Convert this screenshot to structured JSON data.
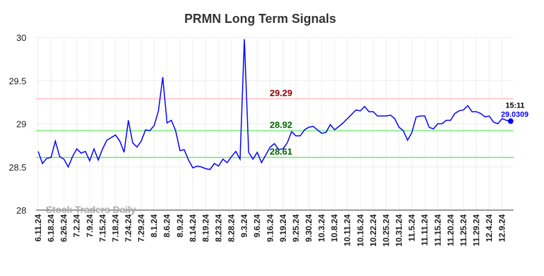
{
  "chart_data": {
    "type": "line",
    "title": "PRMN Long Term Signals",
    "categories": [
      "6.11.24",
      null,
      null,
      "6.18.24",
      null,
      null,
      "6.26.24",
      null,
      null,
      "7.2.24",
      null,
      null,
      "7.9.24",
      null,
      null,
      "7.15.24",
      null,
      null,
      "7.18.24",
      null,
      null,
      "7.24.24",
      null,
      null,
      "7.29.24",
      null,
      null,
      "8.1.24",
      null,
      null,
      "8.6.24",
      null,
      null,
      "8.9.24",
      null,
      null,
      "8.14.24",
      null,
      null,
      "8.19.24",
      null,
      null,
      "8.23.24",
      null,
      null,
      "8.28.24",
      null,
      null,
      "9.3.24",
      null,
      null,
      "9.6.24",
      null,
      null,
      "9.16.24",
      null,
      null,
      "9.19.24",
      null,
      null,
      "9.25.24",
      null,
      null,
      "9.30.24",
      null,
      null,
      "10.3.24",
      null,
      null,
      "10.8.24",
      null,
      null,
      "10.11.24",
      null,
      null,
      "10.16.24",
      null,
      null,
      "10.22.24",
      null,
      null,
      "10.25.24",
      null,
      null,
      "10.31.24",
      null,
      null,
      "11.5.24",
      null,
      null,
      "11.11.24",
      null,
      null,
      "11.15.24",
      null,
      null,
      "11.20.24",
      null,
      null,
      "11.25.24",
      null,
      null,
      "11.29.24",
      null,
      null,
      "12.4.24",
      null,
      null,
      "12.9.24",
      null,
      null
    ],
    "series": [
      {
        "color": "#0000ff",
        "values": [
          28.68,
          28.54,
          28.6,
          28.61,
          28.8,
          28.62,
          28.59,
          28.5,
          28.62,
          28.71,
          28.66,
          28.68,
          28.57,
          28.71,
          28.58,
          28.71,
          28.81,
          28.84,
          28.87,
          28.8,
          28.67,
          29.04,
          28.78,
          28.73,
          28.8,
          28.93,
          28.92,
          28.98,
          29.15,
          29.54,
          29.01,
          29.04,
          28.92,
          28.69,
          28.7,
          28.58,
          28.49,
          28.51,
          28.5,
          28.48,
          28.47,
          28.54,
          28.51,
          28.59,
          28.55,
          28.62,
          28.68,
          28.59,
          29.98,
          28.67,
          28.59,
          28.67,
          28.55,
          28.64,
          28.73,
          28.77,
          28.7,
          28.71,
          28.78,
          28.91,
          28.86,
          28.86,
          28.93,
          28.96,
          28.97,
          28.93,
          28.89,
          28.9,
          28.99,
          28.93,
          28.97,
          29.01,
          29.06,
          29.11,
          29.16,
          29.15,
          29.2,
          29.14,
          29.14,
          29.09,
          29.09,
          29.09,
          29.1,
          29.06,
          28.96,
          28.92,
          28.81,
          28.9,
          29.08,
          29.09,
          29.09,
          28.96,
          28.94,
          29.0,
          29.0,
          29.04,
          29.04,
          29.12,
          29.15,
          29.16,
          29.21,
          29.14,
          29.14,
          29.12,
          29.08,
          29.09,
          29.02,
          29.0,
          29.06,
          29.04,
          29.0309
        ]
      }
    ],
    "hlines": [
      {
        "value": 29.29,
        "color": "#ffcccc",
        "label_color": "#8b0000"
      },
      {
        "value": 28.92,
        "color": "#90ee90",
        "label_color": "#006400"
      },
      {
        "value": 28.61,
        "color": "#90ee90",
        "label_color": "#006400"
      }
    ],
    "end_time": "15:11",
    "watermark": "Stock Traders Daily",
    "ylim": [
      28,
      30
    ],
    "yticks": [
      28,
      28.5,
      29,
      29.5,
      30
    ],
    "grid": true
  }
}
